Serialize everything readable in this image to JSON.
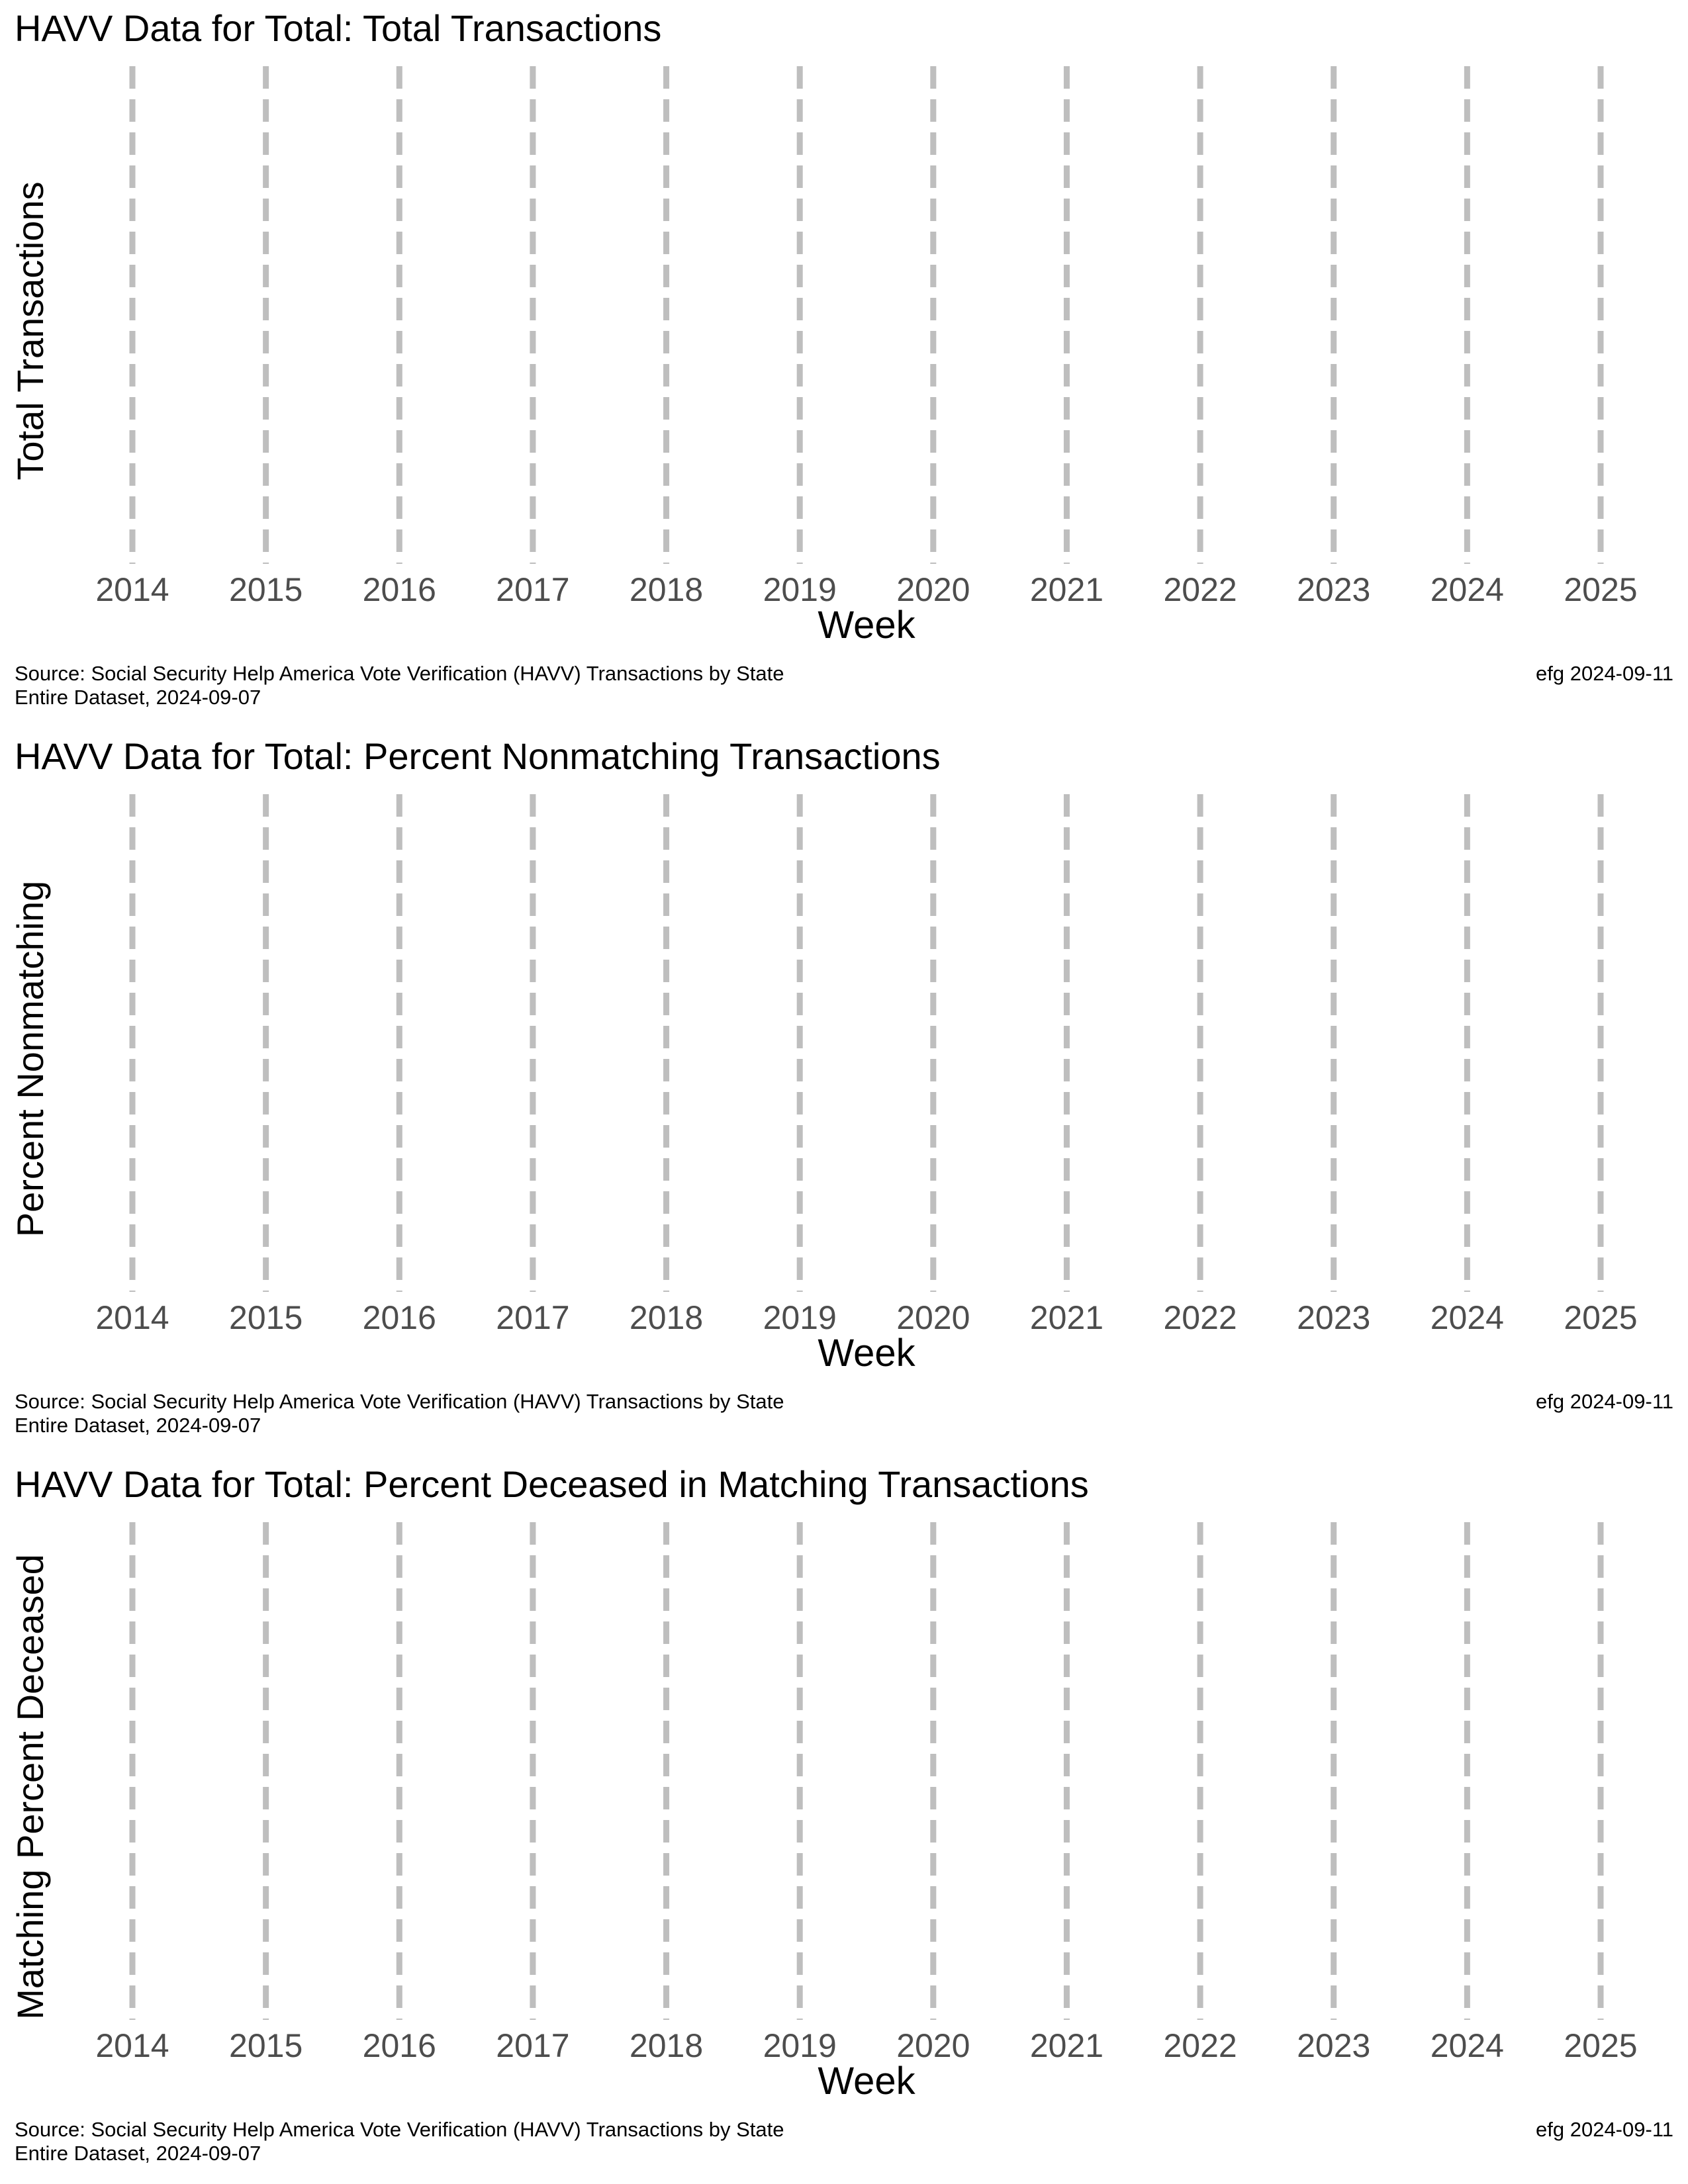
{
  "chart_data": [
    {
      "type": "line",
      "title": "HAVV Data for Total:  Total Transactions",
      "ylabel": "Total Transactions",
      "xlabel": "Week",
      "x_ticks": [
        "2014",
        "2015",
        "2016",
        "2017",
        "2018",
        "2019",
        "2020",
        "2021",
        "2022",
        "2023",
        "2024",
        "2025"
      ],
      "xlim": [
        "2014",
        "2025"
      ],
      "series": [],
      "grid": "dashed vertical reference lines at each year",
      "caption": [
        "Source:  Social Security Help America Vote Verification (HAVV) Transactions by State",
        "Entire Dataset, 2024-09-07"
      ],
      "credit": "efg 2024-09-11"
    },
    {
      "type": "line",
      "title": "HAVV Data for Total:  Percent Nonmatching Transactions",
      "ylabel": "Percent Nonmatching",
      "xlabel": "Week",
      "x_ticks": [
        "2014",
        "2015",
        "2016",
        "2017",
        "2018",
        "2019",
        "2020",
        "2021",
        "2022",
        "2023",
        "2024",
        "2025"
      ],
      "xlim": [
        "2014",
        "2025"
      ],
      "series": [],
      "grid": "dashed vertical reference lines at each year",
      "caption": [
        "Source:  Social Security Help America Vote Verification (HAVV) Transactions by State",
        "Entire Dataset, 2024-09-07"
      ],
      "credit": "efg 2024-09-11"
    },
    {
      "type": "line",
      "title": "HAVV Data for Total:  Percent Deceased in Matching Transactions",
      "ylabel": "Matching Percent Deceased",
      "xlabel": "Week",
      "x_ticks": [
        "2014",
        "2015",
        "2016",
        "2017",
        "2018",
        "2019",
        "2020",
        "2021",
        "2022",
        "2023",
        "2024",
        "2025"
      ],
      "xlim": [
        "2014",
        "2025"
      ],
      "series": [],
      "grid": "dashed vertical reference lines at each year",
      "caption": [
        "Source:  Social Security Help America Vote Verification (HAVV) Transactions by State",
        "Entire Dataset, 2024-09-07"
      ],
      "credit": "efg 2024-09-11"
    }
  ],
  "colors": {
    "reference_line": "#bebebe",
    "tick_label": "#4d4d4d",
    "text": "#000000",
    "background": "#ffffff"
  }
}
